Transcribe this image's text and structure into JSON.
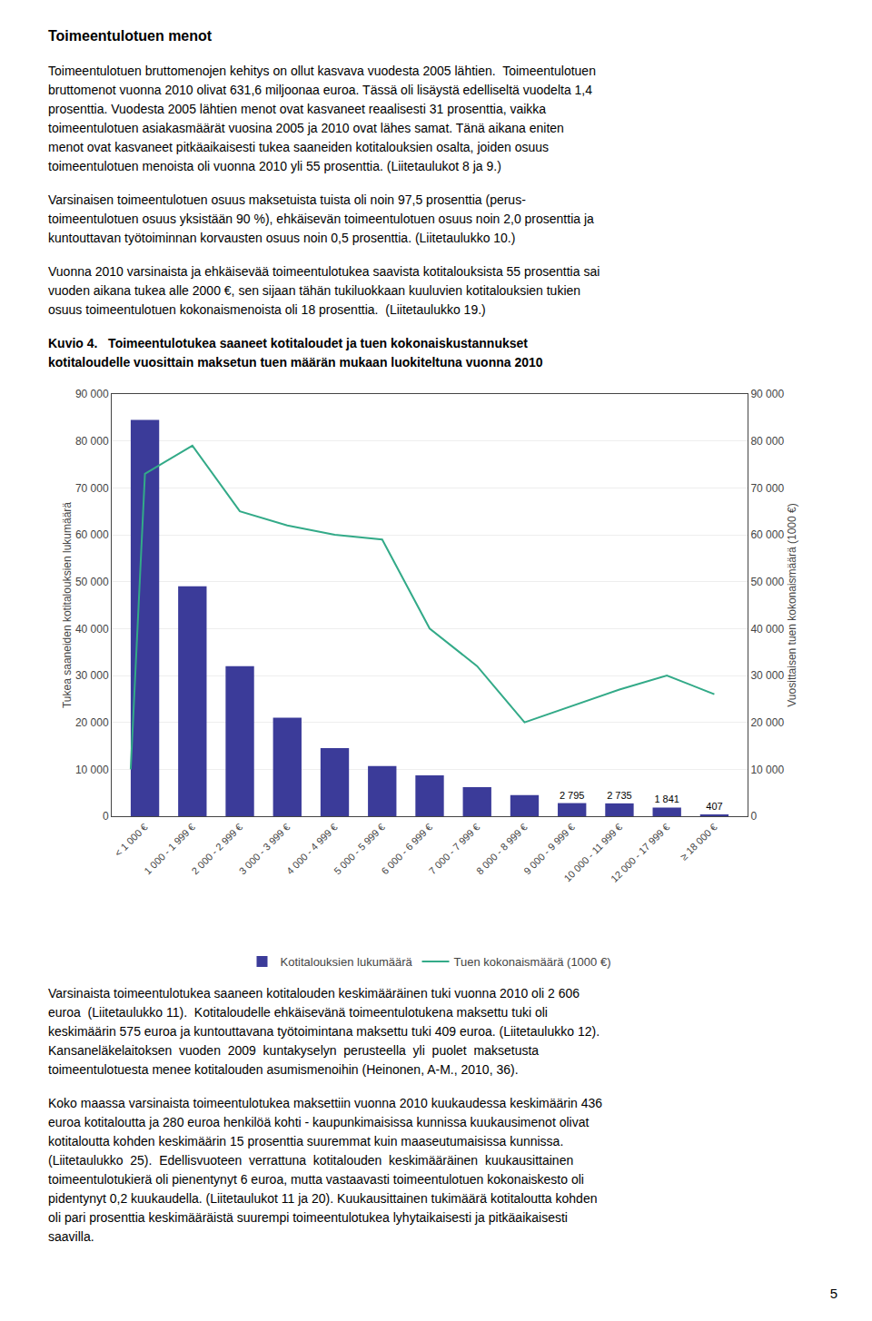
{
  "page": {
    "title": "Toimeentulotuen menot",
    "paragraphs_before": [
      [
        "Toimeentulotuen bruttomenojen kehitys on ollut kasvava vuodesta 2005 lähtien.  Toimeentulotuen",
        "bruttomenot vuonna 2010 olivat 631,6 miljoonaa euroa. Tässä oli lisäystä edelliseltä vuodelta 1,4",
        "prosenttia. Vuodesta 2005 lähtien menot ovat kasvaneet reaalisesti 31 prosenttia, vaikka",
        "toimeentulotuen asiakasmäärät vuosina 2005 ja 2010 ovat lähes samat. Tänä aikana eniten",
        "menot ovat kasvaneet pitkäaikaisesti tukea saaneiden kotitalouksien osalta, joiden osuus",
        "toimeentulotuen menoista oli vuonna 2010 yli 55 prosenttia. (Liitetaulukot 8 ja 9.)"
      ],
      [
        "Varsinaisen toimeentulotuen osuus maksetuista tuista oli noin 97,5 prosenttia (perus-",
        "toimeentulotuen osuus yksistään 90 %), ehkäisevän toimeentulotuen osuus noin 2,0 prosenttia ja",
        "kuntouttavan työtoiminnan korvausten osuus noin 0,5 prosenttia. (Liitetaulukko 10.)"
      ],
      [
        "Vuonna 2010 varsinaista ja ehkäisevää toimeentulotukea saavista kotitalouksista 55 prosenttia sai",
        "vuoden aikana tukea alle 2000 €, sen sijaan tähän tukiluokkaan kuuluvien kotitalouksien tukien",
        "osuus toimeentulotuen kokonaismenoista oli 18 prosenttia.  (Liitetaulukko 19.)"
      ]
    ],
    "paragraphs_after": [
      [
        "Varsinaista toimeentulotukea saaneen kotitalouden keskimääräinen tuki vuonna 2010 oli 2 606",
        "euroa  (Liitetaulukko 11).  Kotitaloudelle ehkäisevänä toimeentulotukena maksettu tuki oli",
        "keskimäärin 575 euroa ja kuntouttavana työtoimintana maksettu tuki 409 euroa. (Liitetaulukko 12).",
        "Kansaneläkelaitoksen  vuoden  2009  kuntakyselyn  perusteella  yli  puolet  maksetusta",
        "toimeentulotuesta menee kotitalouden asumismenoihin (Heinonen, A-M., 2010, 36)."
      ],
      [
        "Koko maassa varsinaista toimeentulotukea maksettiin vuonna 2010 kuukaudessa keskimäärin 436",
        "euroa kotitaloutta ja 280 euroa henkilöä kohti - kaupunkimaisissa kunnissa kuukausimenot olivat",
        "kotitaloutta kohden keskimäärin 15 prosenttia suuremmat kuin maaseutumaisissa kunnissa.",
        "(Liitetaulukko  25).  Edellisvuoteen  verrattuna  kotitalouden  keskimääräinen  kuukausittainen",
        "toimeentulotukierä oli pienentynyt 6 euroa, mutta vastaavasti toimeentulotuen kokonaiskesto oli",
        "pidentynyt 0,2 kuukaudella. (Liitetaulukot 11 ja 20). Kuukausittainen tukimäärä kotitaloutta kohden",
        "oli pari prosenttia keskimääräistä suurempi toimeentulotukea lyhytaikaisesti ja pitkäaikaisesti",
        "saavilla."
      ]
    ],
    "page_number": "5"
  },
  "chart_data": {
    "type": "bar",
    "title": "Kuvio 4.   Toimeentulotukea saaneet kotitaloudet ja tuen kokonaiskustannukset\nkotitaloudelle vuosittain maksetun tuen määrän mukaan luokiteltuna vuonna 2010",
    "categories": [
      "< 1 000 €",
      "1 000 - 1 999 €",
      "2 000 - 2 999 €",
      "3 000 - 3 999 €",
      "4 000 - 4 999 €",
      "5 000 - 5 999 €",
      "6 000 - 6 999 €",
      "7 000 - 7 999 €",
      "8 000 - 8 999 €",
      "9 000 - 9 999 €",
      "10 000 - 11 999 €",
      "12 000 - 17 999 €",
      "≥ 18 000 €"
    ],
    "xlim": [
      -0.7,
      12.7
    ],
    "series": [
      {
        "name": "Kotitalouksien lukumäärä",
        "type": "bar",
        "color": "#3B3B99",
        "values": [
          84500,
          49000,
          32000,
          21000,
          14500,
          10700,
          8700,
          6200,
          4500,
          2795,
          2735,
          1841,
          407
        ],
        "value_labels": [
          null,
          null,
          null,
          null,
          null,
          null,
          null,
          null,
          null,
          "2 795",
          "2 735",
          "1 841",
          "407"
        ]
      },
      {
        "name": "Tuen kokonaismäärä (1000 €)",
        "type": "line",
        "color": "#33AA88",
        "axis": "y2",
        "x": [
          -0.3,
          0,
          1,
          2,
          3,
          4,
          5,
          6,
          7,
          8,
          10,
          11,
          12
        ],
        "values": [
          10000,
          73000,
          79000,
          65000,
          62000,
          60000,
          59000,
          40000,
          32000,
          20000,
          27000,
          30000,
          26000
        ]
      }
    ],
    "ylabel": "Tukea saaneiden kotitalouksien lukumäärä",
    "y2label": "Vuosittaisen tuen kokonaismäärä (1000 €)",
    "ylim": [
      0,
      90000
    ],
    "yticks": [
      0,
      {
        "value": 10000,
        "label": "10 000"
      },
      {
        "value": 20000,
        "label": "20 000"
      },
      {
        "value": 30000,
        "label": "30 000"
      },
      {
        "value": 40000,
        "label": "40 000"
      },
      {
        "value": 50000,
        "label": "50 000"
      },
      {
        "value": 60000,
        "label": "60 000"
      },
      {
        "value": 70000,
        "label": "70 000"
      },
      {
        "value": 80000,
        "label": "80 000"
      },
      {
        "value": 90000,
        "label": "90 000"
      }
    ],
    "y2lim": [
      0,
      90000
    ],
    "y2ticks": [
      0,
      {
        "value": 10000,
        "label": "10 000"
      },
      {
        "value": 20000,
        "label": "20 000"
      },
      {
        "value": 30000,
        "label": "30 000"
      },
      {
        "value": 40000,
        "label": "40 000"
      },
      {
        "value": 50000,
        "label": "50 000"
      },
      {
        "value": 60000,
        "label": "60 000"
      },
      {
        "value": 70000,
        "label": "70 000"
      },
      {
        "value": 80000,
        "label": "80 000"
      },
      {
        "value": 90000,
        "label": "90 000"
      }
    ],
    "grid": true,
    "legend": "bottom",
    "data_labels": true
  }
}
